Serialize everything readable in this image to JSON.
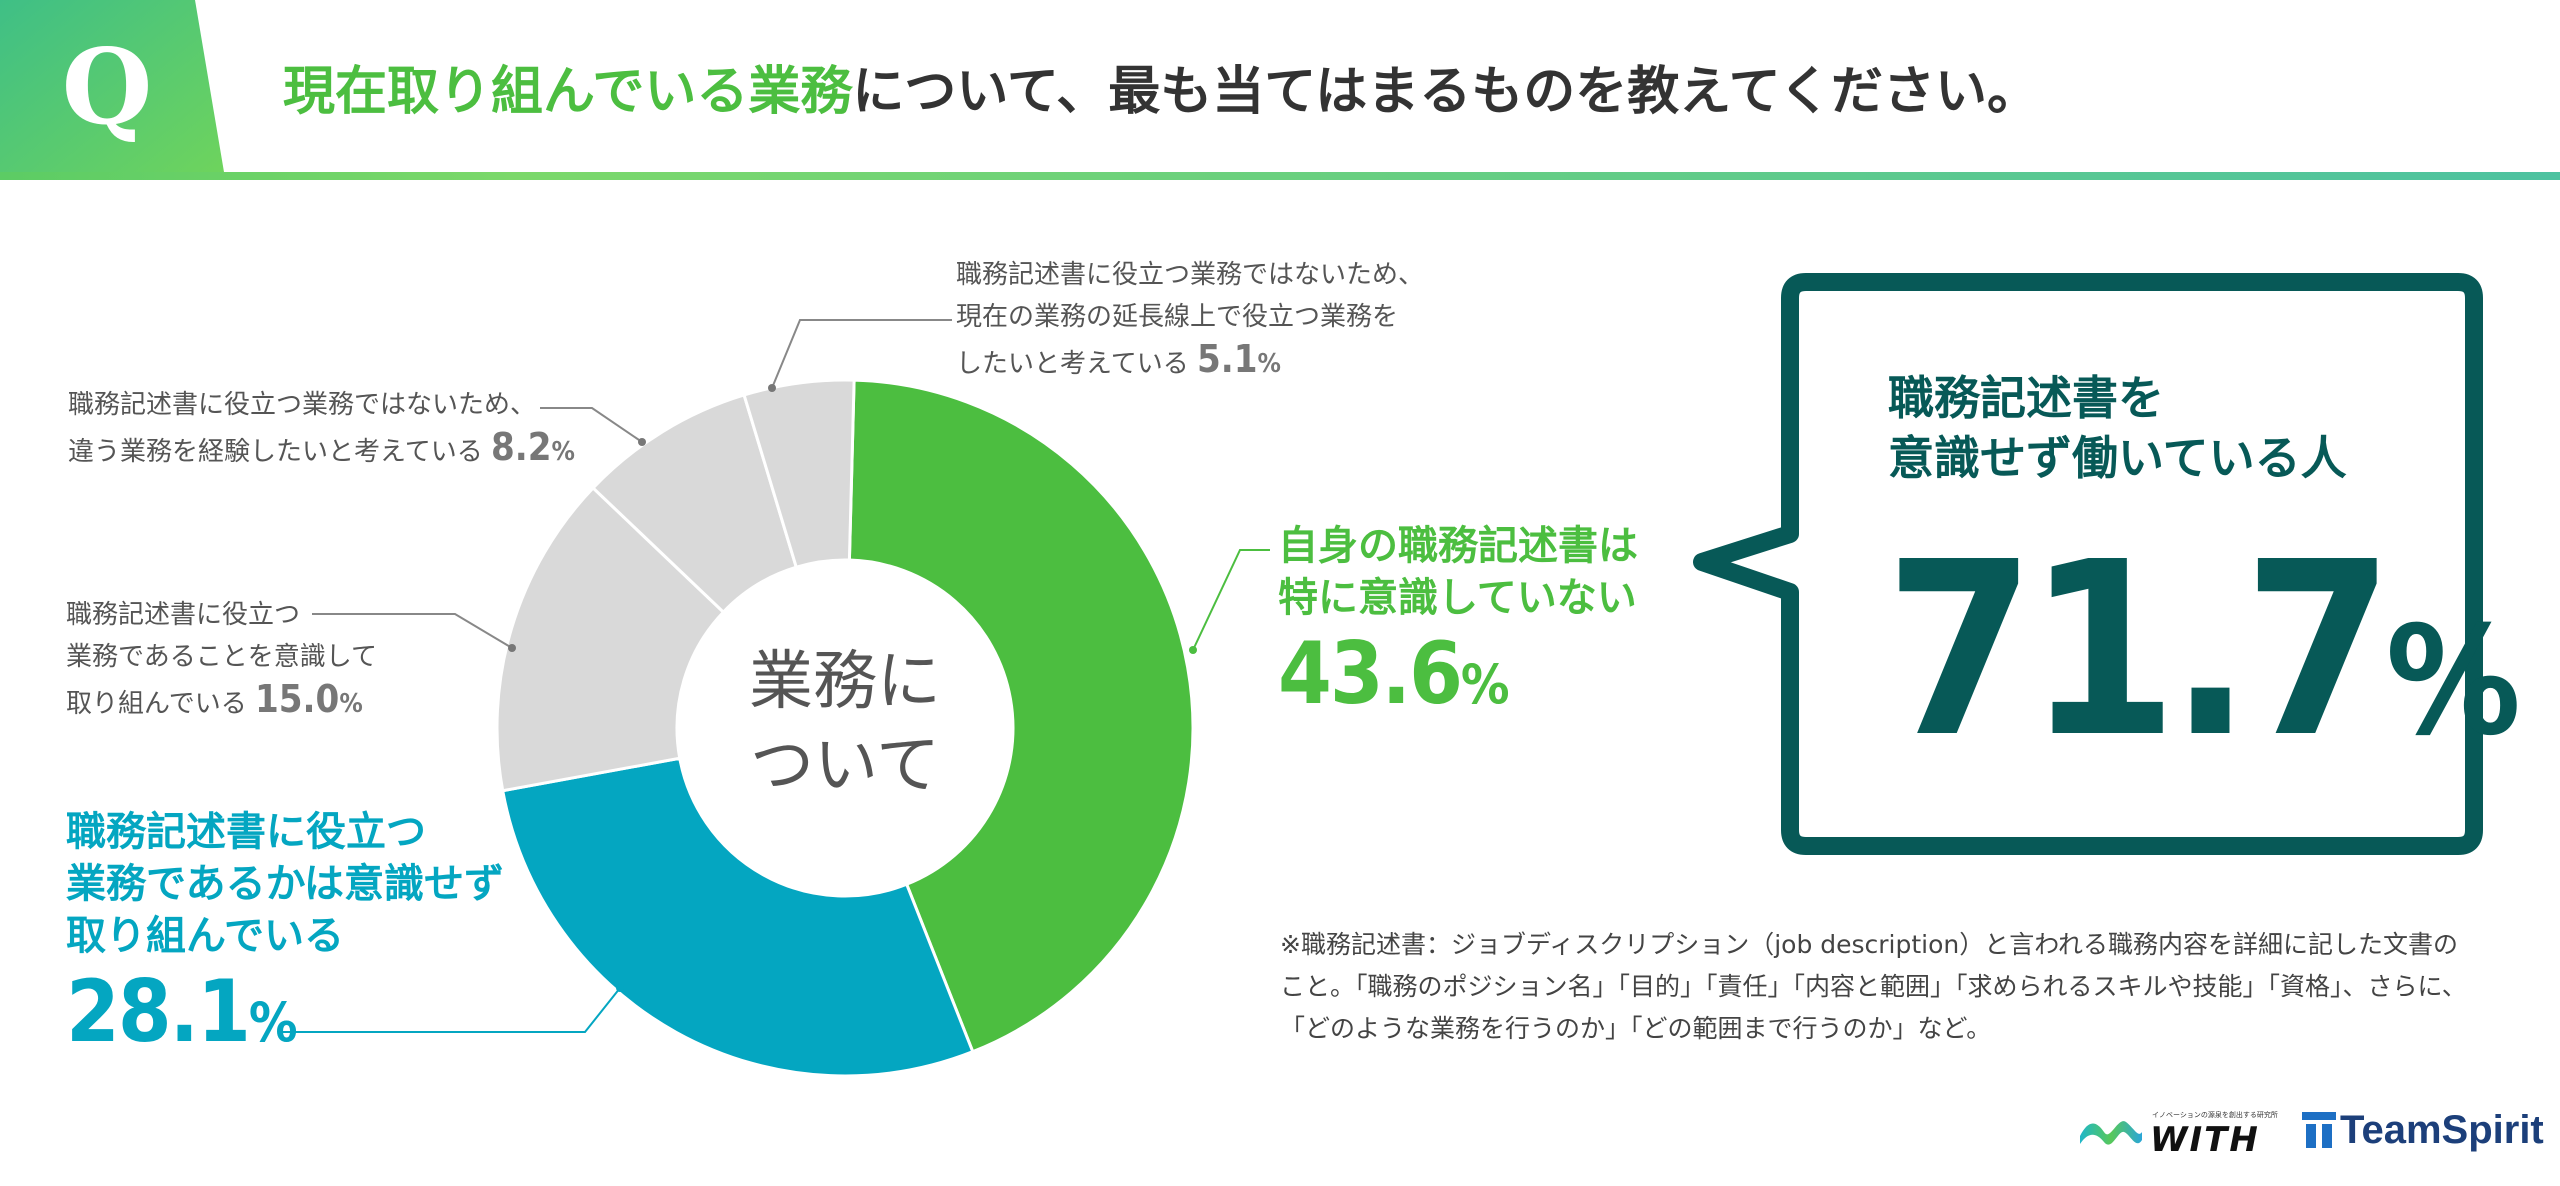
{
  "header": {
    "q_letter": "Q",
    "question_highlight": "現在取り組んでいる業務",
    "question_rest": "について、最も当てはまるものを教えてください。"
  },
  "chart_data": {
    "type": "donut",
    "center_label": [
      "業務に",
      "ついて"
    ],
    "unit": "%",
    "series": [
      {
        "label": "自身の職務記述書は特に意識していない",
        "value": 43.6,
        "color": "#4cbe40"
      },
      {
        "label": "職務記述書に役立つ業務であるかは意識せず取り組んでいる",
        "value": 28.1,
        "color": "#04a6c1"
      },
      {
        "label": "職務記述書に役立つ業務であることを意識して取り組んでいる",
        "value": 15.0,
        "color": "#d9d9d9"
      },
      {
        "label": "職務記述書に役立つ業務ではないため、違う業務を経験したいと考えている",
        "value": 8.2,
        "color": "#d9d9d9"
      },
      {
        "label": "職務記述書に役立つ業務ではないため、現在の業務の延長線上で役立つ業務をしたいと考えている",
        "value": 5.1,
        "color": "#d9d9d9"
      }
    ]
  },
  "labels": {
    "green": {
      "lines": [
        "自身の職務記述書は",
        "特に意識していない"
      ],
      "value": "43.6",
      "unit": "%"
    },
    "blue": {
      "lines": [
        "職務記述書に役立つ",
        "業務であるかは意識せず",
        "取り組んでいる"
      ],
      "value": "28.1",
      "unit": "%"
    },
    "aware": {
      "lines": [
        "職務記述書に役立つ",
        "業務であることを意識して",
        "取り組んでいる"
      ],
      "value": "15.0",
      "unit": "%"
    },
    "different": {
      "lines": [
        "職務記述書に役立つ業務ではないため、",
        "違う業務を経験したいと考えている"
      ],
      "value": "8.2",
      "unit": "%"
    },
    "extension": {
      "lines": [
        "職務記述書に役立つ業務ではないため、",
        "現在の業務の延長線上で役立つ業務を",
        "したいと考えている"
      ],
      "value": "5.1",
      "unit": "%"
    }
  },
  "callout": {
    "title_lines": [
      "職務記述書を",
      "意識せず働いている人"
    ],
    "value": "71.7",
    "unit": "%",
    "color": "#075957"
  },
  "footnote": "※職務記述書：ジョブディスクリプション（job description）と言われる職務内容を詳細に記した文書のこと。「職務のポジション名」「目的」「責任」「内容と範囲」「求められるスキルや技能」「資格」、さらに、「どのような業務を行うのか」「どの範囲まで行うのか」など。",
  "logos": {
    "with": "WITH",
    "with_tagline": "イノベーションの源泉を創出する研究所",
    "teamspirit": "TeamSpirit"
  }
}
